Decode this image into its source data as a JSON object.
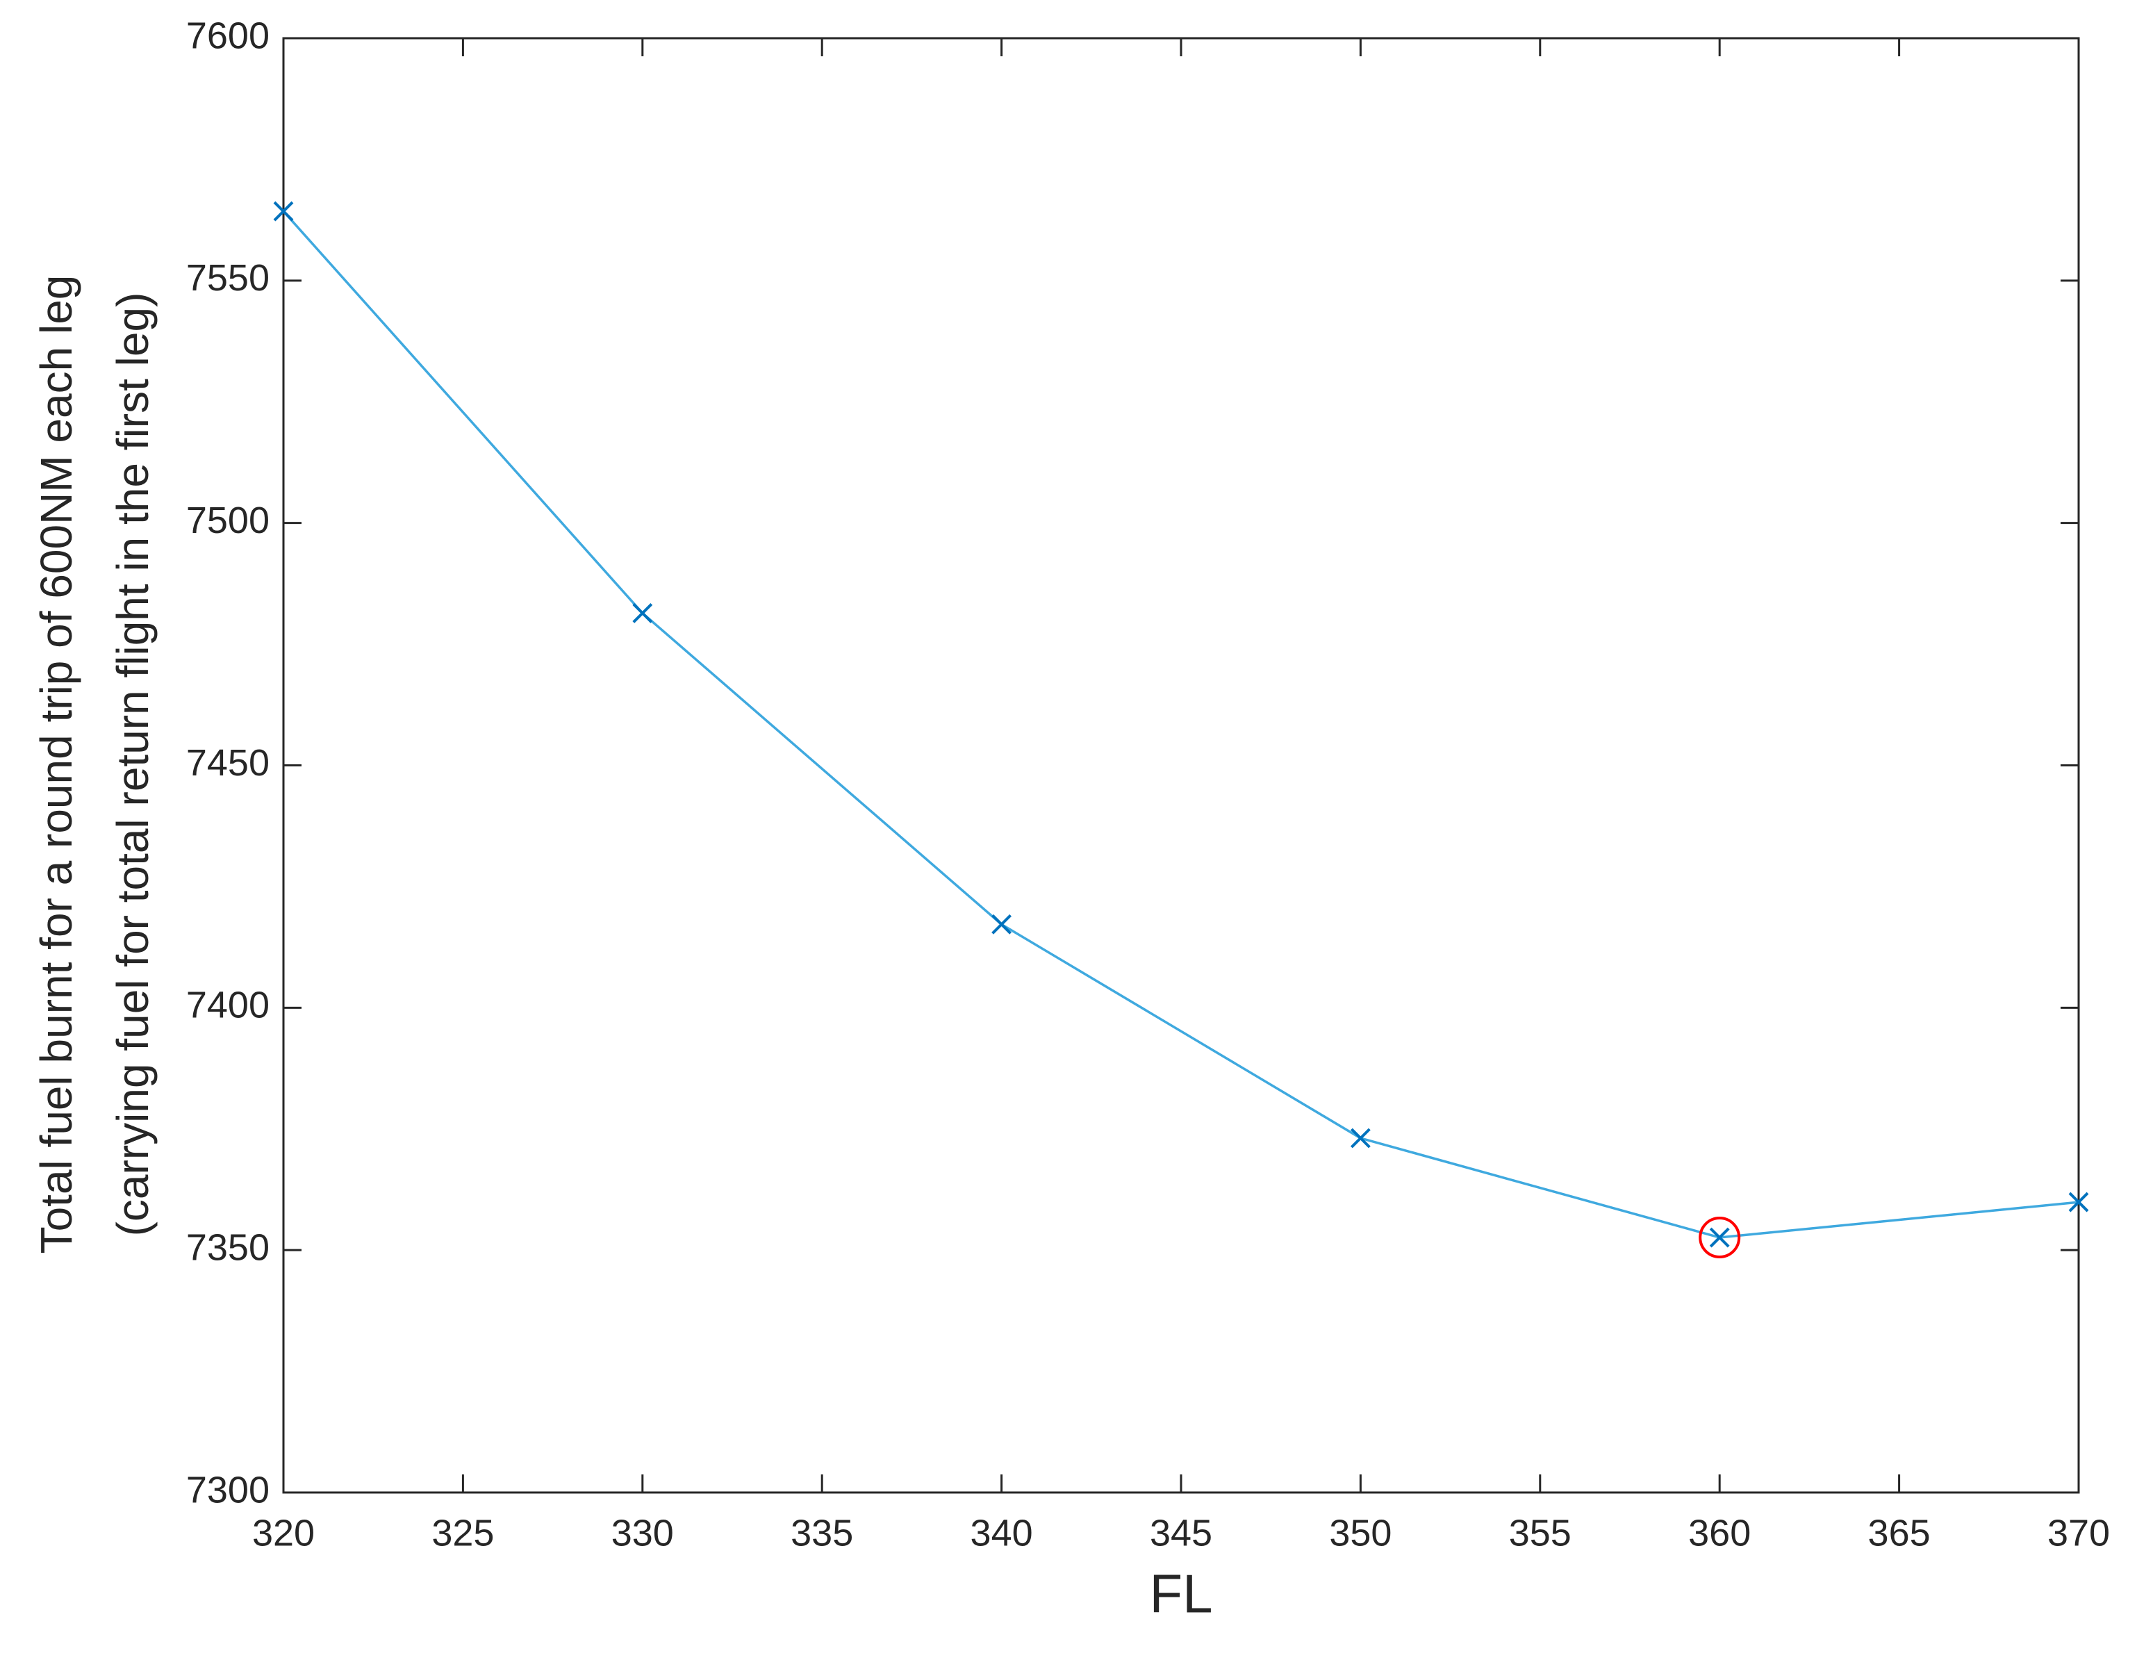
{
  "chart_data": {
    "type": "line",
    "xlabel": "FL",
    "ylabel": [
      "Total fuel burnt for a round trip of 600NM each leg",
      "(carrying fuel for total return flight in the first leg)"
    ],
    "x": [
      320,
      330,
      340,
      350,
      360,
      370
    ],
    "series": [
      {
        "color": "#0072bd",
        "line_color": "#3fa9df",
        "marker": "x",
        "x": [
          320,
          330,
          340,
          350,
          360,
          370
        ],
        "values": [
          7564.3,
          7481.4,
          7417.2,
          7373.1,
          7352.6,
          7359.9
        ]
      },
      {
        "color": "#ff0000",
        "marker": "circle",
        "x": [
          360
        ],
        "values": [
          7352.6
        ]
      }
    ],
    "xlim": [
      320,
      370
    ],
    "xticks": [
      320,
      325,
      330,
      335,
      340,
      345,
      350,
      355,
      360,
      365,
      370
    ],
    "ylim": [
      7300,
      7600
    ],
    "yticks": [
      7300,
      7350,
      7400,
      7450,
      7500,
      7550,
      7600
    ],
    "grid": false,
    "box": true
  }
}
